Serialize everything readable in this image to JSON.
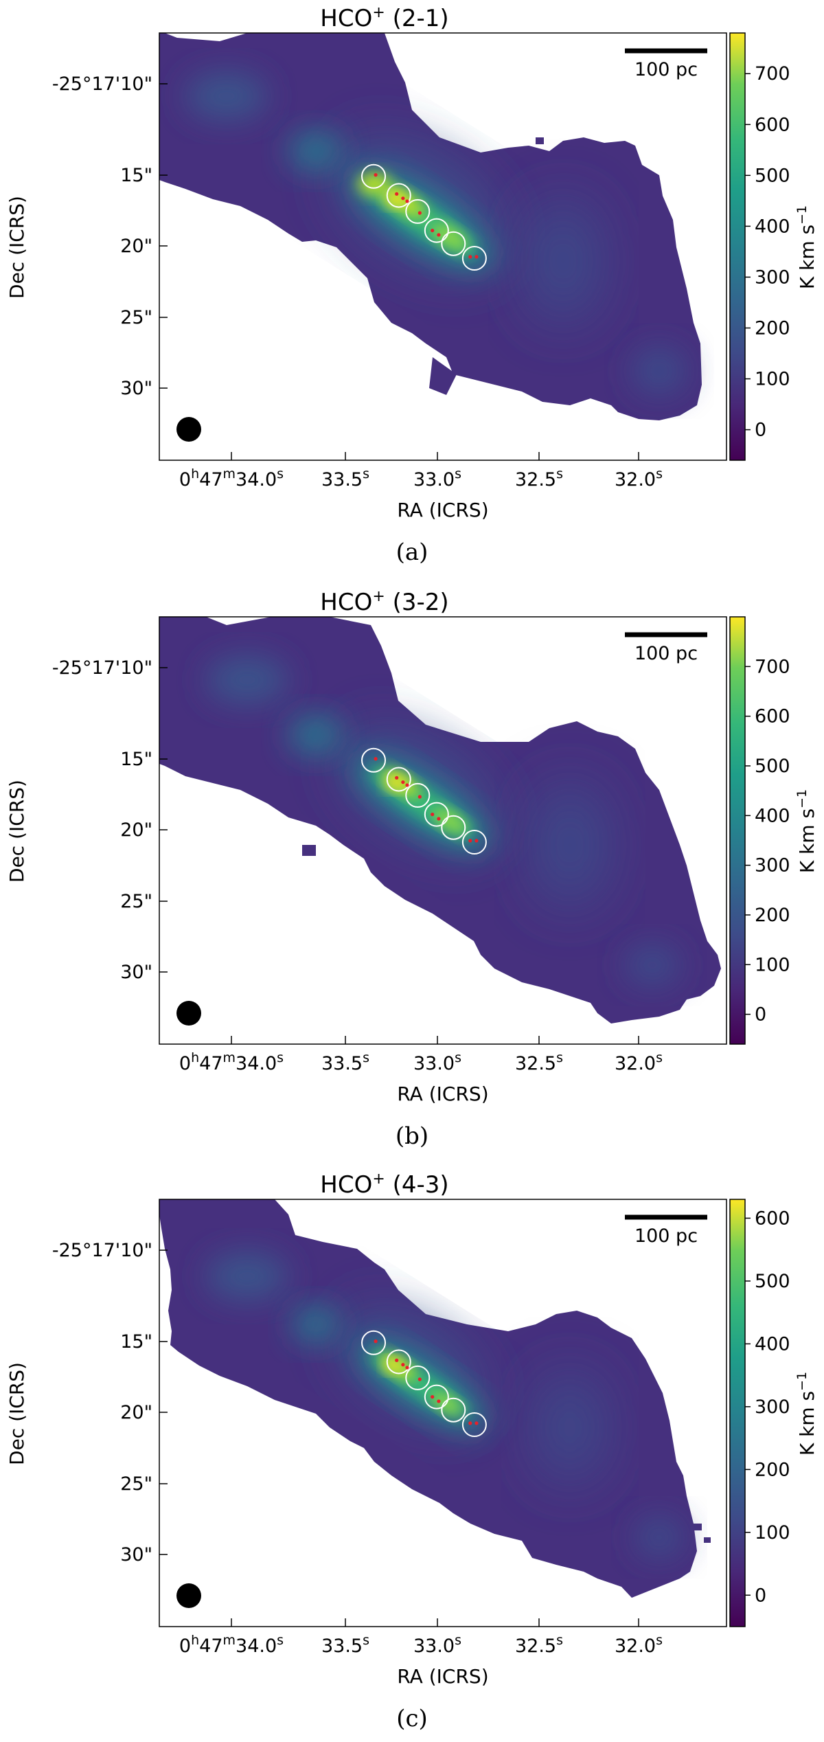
{
  "panels": [
    {
      "title_main": "HCO",
      "title_sup": "+",
      "title_rest": " (2-1)",
      "caption": "(a)",
      "scalebar": "100 pc",
      "xlabel": "RA (ICRS)",
      "ylabel": "Dec (ICRS)",
      "cbar_label": "K km s",
      "cbar_label_sup": "−1",
      "xticks": [
        {
          "h": "0",
          "m": "47",
          "s": "34.0"
        },
        {
          "s": "33.5"
        },
        {
          "s": "33.0"
        },
        {
          "s": "32.5"
        },
        {
          "s": "32.0"
        }
      ],
      "yticks": [
        "-25°17'10\"",
        "15\"",
        "20\"",
        "25\"",
        "30\""
      ],
      "cbar_ticks": [
        "0",
        "100",
        "200",
        "300",
        "400",
        "500",
        "600",
        "700"
      ]
    },
    {
      "title_main": "HCO",
      "title_sup": "+",
      "title_rest": " (3-2)",
      "caption": "(b)",
      "scalebar": "100 pc",
      "xlabel": "RA (ICRS)",
      "ylabel": "Dec (ICRS)",
      "cbar_label": "K km s",
      "cbar_label_sup": "−1",
      "xticks": [
        {
          "h": "0",
          "m": "47",
          "s": "34.0"
        },
        {
          "s": "33.5"
        },
        {
          "s": "33.0"
        },
        {
          "s": "32.5"
        },
        {
          "s": "32.0"
        }
      ],
      "yticks": [
        "-25°17'10\"",
        "15\"",
        "20\"",
        "25\"",
        "30\""
      ],
      "cbar_ticks": [
        "0",
        "100",
        "200",
        "300",
        "400",
        "500",
        "600",
        "700"
      ]
    },
    {
      "title_main": "HCO",
      "title_sup": "+",
      "title_rest": " (4-3)",
      "caption": "(c)",
      "scalebar": "100 pc",
      "xlabel": "RA (ICRS)",
      "ylabel": "Dec (ICRS)",
      "cbar_label": "K km s",
      "cbar_label_sup": "−1",
      "xticks": [
        {
          "h": "0",
          "m": "47",
          "s": "34.0"
        },
        {
          "s": "33.5"
        },
        {
          "s": "33.0"
        },
        {
          "s": "32.5"
        },
        {
          "s": "32.0"
        }
      ],
      "yticks": [
        "-25°17'10\"",
        "15\"",
        "20\"",
        "25\"",
        "30\""
      ],
      "cbar_ticks": [
        "0",
        "100",
        "200",
        "300",
        "400",
        "500",
        "600"
      ]
    }
  ],
  "chart_data": [
    {
      "type": "heatmap",
      "colormap": "viridis",
      "x_unit": "RA seconds",
      "y_unit": "Dec arcsec offset",
      "xlim": [
        34.3,
        31.6
      ],
      "ylim": [
        35.0,
        5.8
      ],
      "cbar_range": [
        -60,
        780
      ],
      "cbar_ticks": [
        0,
        100,
        200,
        300,
        400,
        500,
        600,
        700
      ],
      "peak": 780,
      "circles": [
        {
          "ra": 33.28,
          "dec": 15.6
        },
        {
          "ra": 33.16,
          "dec": 16.9
        },
        {
          "ra": 33.07,
          "dec": 18.0
        },
        {
          "ra": 32.98,
          "dec": 19.3
        },
        {
          "ra": 32.9,
          "dec": 20.2
        },
        {
          "ra": 32.8,
          "dec": 21.2
        }
      ],
      "markers": [
        {
          "ra": 33.27,
          "dec": 15.5
        },
        {
          "ra": 33.17,
          "dec": 16.8
        },
        {
          "ra": 33.14,
          "dec": 17.1
        },
        {
          "ra": 33.12,
          "dec": 17.3
        },
        {
          "ra": 33.06,
          "dec": 18.1
        },
        {
          "ra": 33.0,
          "dec": 19.3
        },
        {
          "ra": 32.97,
          "dec": 19.6
        },
        {
          "ra": 32.82,
          "dec": 21.1
        },
        {
          "ra": 32.79,
          "dec": 21.1
        }
      ]
    },
    {
      "type": "heatmap",
      "colormap": "viridis",
      "x_unit": "RA seconds",
      "y_unit": "Dec arcsec offset",
      "xlim": [
        34.3,
        31.6
      ],
      "ylim": [
        35.0,
        5.8
      ],
      "cbar_range": [
        -60,
        800
      ],
      "cbar_ticks": [
        0,
        100,
        200,
        300,
        400,
        500,
        600,
        700
      ],
      "peak": 800,
      "circles": [
        {
          "ra": 33.28,
          "dec": 15.6
        },
        {
          "ra": 33.16,
          "dec": 16.9
        },
        {
          "ra": 33.07,
          "dec": 18.0
        },
        {
          "ra": 32.98,
          "dec": 19.3
        },
        {
          "ra": 32.9,
          "dec": 20.2
        },
        {
          "ra": 32.8,
          "dec": 21.2
        }
      ],
      "markers": [
        {
          "ra": 33.27,
          "dec": 15.5
        },
        {
          "ra": 33.17,
          "dec": 16.8
        },
        {
          "ra": 33.14,
          "dec": 17.1
        },
        {
          "ra": 33.12,
          "dec": 17.3
        },
        {
          "ra": 33.06,
          "dec": 18.1
        },
        {
          "ra": 33.0,
          "dec": 19.3
        },
        {
          "ra": 32.97,
          "dec": 19.6
        },
        {
          "ra": 32.82,
          "dec": 21.1
        },
        {
          "ra": 32.79,
          "dec": 21.1
        }
      ]
    },
    {
      "type": "heatmap",
      "colormap": "viridis",
      "x_unit": "RA seconds",
      "y_unit": "Dec arcsec offset",
      "xlim": [
        34.3,
        31.6
      ],
      "ylim": [
        35.0,
        5.8
      ],
      "cbar_range": [
        -50,
        630
      ],
      "cbar_ticks": [
        0,
        100,
        200,
        300,
        400,
        500,
        600
      ],
      "peak": 630,
      "circles": [
        {
          "ra": 33.28,
          "dec": 15.6
        },
        {
          "ra": 33.16,
          "dec": 16.9
        },
        {
          "ra": 33.07,
          "dec": 18.0
        },
        {
          "ra": 32.98,
          "dec": 19.3
        },
        {
          "ra": 32.9,
          "dec": 20.2
        },
        {
          "ra": 32.8,
          "dec": 21.2
        }
      ],
      "markers": [
        {
          "ra": 33.27,
          "dec": 15.5
        },
        {
          "ra": 33.17,
          "dec": 16.8
        },
        {
          "ra": 33.14,
          "dec": 17.1
        },
        {
          "ra": 33.12,
          "dec": 17.3
        },
        {
          "ra": 33.06,
          "dec": 18.1
        },
        {
          "ra": 33.0,
          "dec": 19.3
        },
        {
          "ra": 32.97,
          "dec": 19.6
        },
        {
          "ra": 32.82,
          "dec": 21.1
        },
        {
          "ra": 32.79,
          "dec": 21.1
        }
      ]
    }
  ]
}
